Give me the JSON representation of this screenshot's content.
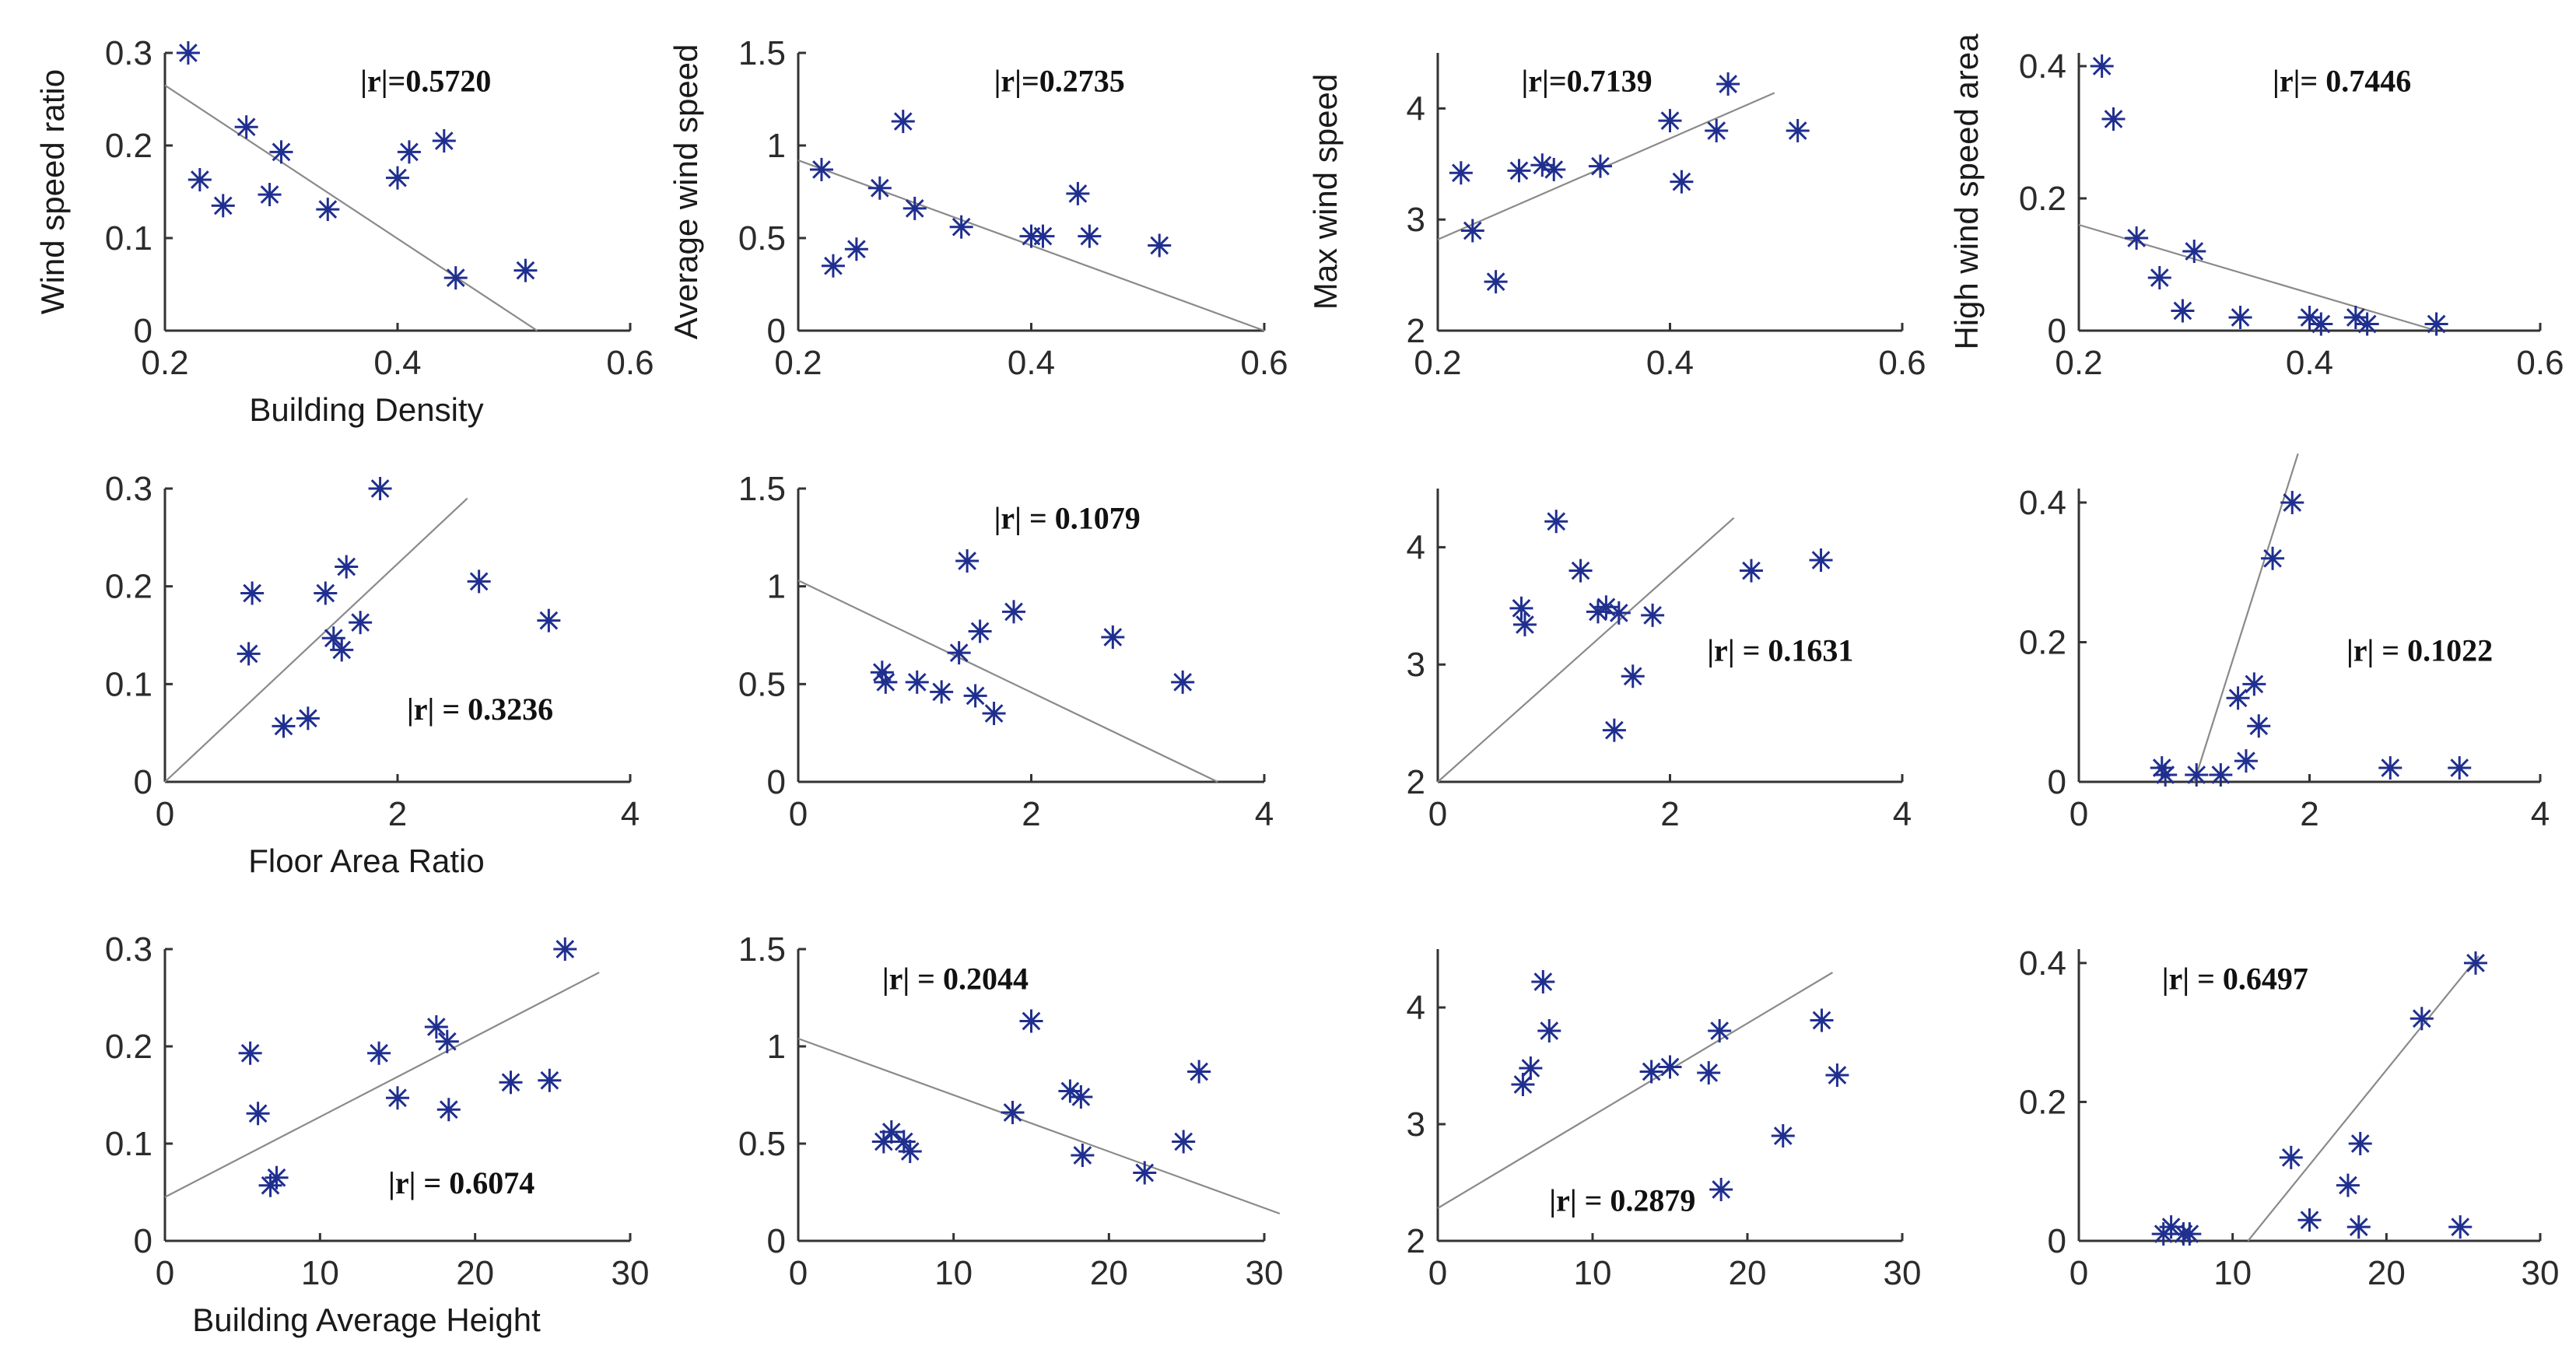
{
  "chart_data": [
    {
      "type": "scatter",
      "row": 0,
      "col": 0,
      "ylabel": "Wind speed ratio",
      "xlabel": "Building Density",
      "xlim": [
        0.2,
        0.6
      ],
      "ylim": [
        0,
        0.3
      ],
      "xticks": [
        0.2,
        0.4,
        0.6
      ],
      "yticks": [
        0,
        0.1,
        0.2,
        0.3
      ],
      "annotation": "|r|=0.5720",
      "annotation_pos": "top-center",
      "points": [
        [
          0.22,
          0.3
        ],
        [
          0.23,
          0.163
        ],
        [
          0.25,
          0.135
        ],
        [
          0.27,
          0.22
        ],
        [
          0.29,
          0.147
        ],
        [
          0.3,
          0.193
        ],
        [
          0.34,
          0.131
        ],
        [
          0.4,
          0.165
        ],
        [
          0.41,
          0.193
        ],
        [
          0.44,
          0.205
        ],
        [
          0.45,
          0.057
        ],
        [
          0.51,
          0.065
        ]
      ],
      "fit": [
        [
          0.2,
          0.265
        ],
        [
          0.52,
          0
        ]
      ]
    },
    {
      "type": "scatter",
      "row": 0,
      "col": 1,
      "ylabel": "Average wind speed",
      "xlabel": "",
      "xlim": [
        0.2,
        0.6
      ],
      "ylim": [
        0,
        1.5
      ],
      "xticks": [
        0.2,
        0.4,
        0.6
      ],
      "yticks": [
        0,
        0.5,
        1,
        1.5
      ],
      "annotation": "|r|=0.2735",
      "annotation_pos": "top-center",
      "points": [
        [
          0.22,
          0.87
        ],
        [
          0.23,
          0.35
        ],
        [
          0.25,
          0.44
        ],
        [
          0.27,
          0.77
        ],
        [
          0.29,
          1.13
        ],
        [
          0.3,
          0.66
        ],
        [
          0.34,
          0.56
        ],
        [
          0.4,
          0.51
        ],
        [
          0.41,
          0.51
        ],
        [
          0.44,
          0.74
        ],
        [
          0.45,
          0.51
        ],
        [
          0.51,
          0.46
        ]
      ],
      "fit": [
        [
          0.2,
          0.92
        ],
        [
          0.6,
          0
        ]
      ]
    },
    {
      "type": "scatter",
      "row": 0,
      "col": 2,
      "ylabel": "Max wind speed",
      "xlabel": "",
      "xlim": [
        0.2,
        0.6
      ],
      "ylim": [
        2,
        4.5
      ],
      "xticks": [
        0.2,
        0.4,
        0.6
      ],
      "yticks": [
        2,
        3,
        4
      ],
      "annotation": "|r|=0.7139",
      "annotation_pos": "top-left",
      "points": [
        [
          0.22,
          3.42
        ],
        [
          0.23,
          2.9
        ],
        [
          0.25,
          2.44
        ],
        [
          0.27,
          3.44
        ],
        [
          0.29,
          3.49
        ],
        [
          0.3,
          3.45
        ],
        [
          0.34,
          3.48
        ],
        [
          0.4,
          3.89
        ],
        [
          0.41,
          3.34
        ],
        [
          0.44,
          3.8
        ],
        [
          0.45,
          4.22
        ],
        [
          0.51,
          3.8
        ]
      ],
      "fit": [
        [
          0.2,
          2.82
        ],
        [
          0.49,
          4.14
        ]
      ]
    },
    {
      "type": "scatter",
      "row": 0,
      "col": 3,
      "ylabel": "High wind speed area",
      "xlabel": "",
      "xlim": [
        0.2,
        0.6
      ],
      "ylim": [
        0,
        0.42
      ],
      "xticks": [
        0.2,
        0.4,
        0.6
      ],
      "yticks": [
        0,
        0.2,
        0.4
      ],
      "annotation": "|r|= 0.7446",
      "annotation_pos": "top-center",
      "points": [
        [
          0.22,
          0.4
        ],
        [
          0.23,
          0.32
        ],
        [
          0.25,
          0.14
        ],
        [
          0.27,
          0.08
        ],
        [
          0.29,
          0.03
        ],
        [
          0.3,
          0.12
        ],
        [
          0.34,
          0.02
        ],
        [
          0.4,
          0.02
        ],
        [
          0.41,
          0.01
        ],
        [
          0.44,
          0.02
        ],
        [
          0.45,
          0.01
        ],
        [
          0.51,
          0.01
        ]
      ],
      "fit": [
        [
          0.2,
          0.16
        ],
        [
          0.51,
          0
        ]
      ]
    },
    {
      "type": "scatter",
      "row": 1,
      "col": 0,
      "ylabel": "",
      "xlabel": "Floor Area Ratio",
      "xlim": [
        0,
        4
      ],
      "ylim": [
        0,
        0.3
      ],
      "xticks": [
        0,
        2,
        4
      ],
      "yticks": [
        0,
        0.1,
        0.2,
        0.3
      ],
      "annotation": "|r| = 0.3236",
      "annotation_pos": "center",
      "points": [
        [
          0.72,
          0.131
        ],
        [
          0.75,
          0.193
        ],
        [
          1.02,
          0.057
        ],
        [
          1.23,
          0.065
        ],
        [
          1.38,
          0.193
        ],
        [
          1.45,
          0.147
        ],
        [
          1.52,
          0.135
        ],
        [
          1.56,
          0.22
        ],
        [
          1.68,
          0.163
        ],
        [
          1.85,
          0.3
        ],
        [
          2.7,
          0.205
        ],
        [
          3.3,
          0.165
        ]
      ],
      "fit": [
        [
          0,
          0
        ],
        [
          2.6,
          0.29
        ]
      ]
    },
    {
      "type": "scatter",
      "row": 1,
      "col": 1,
      "ylabel": "",
      "xlabel": "",
      "xlim": [
        0,
        4
      ],
      "ylim": [
        0,
        1.5
      ],
      "xticks": [
        0,
        2,
        4
      ],
      "yticks": [
        0,
        0.5,
        1,
        1.5
      ],
      "annotation": "|r| = 0.1079",
      "annotation_pos": "top-center",
      "points": [
        [
          0.72,
          0.56
        ],
        [
          0.75,
          0.51
        ],
        [
          1.02,
          0.51
        ],
        [
          1.23,
          0.46
        ],
        [
          1.38,
          0.66
        ],
        [
          1.45,
          1.13
        ],
        [
          1.52,
          0.44
        ],
        [
          1.56,
          0.77
        ],
        [
          1.68,
          0.35
        ],
        [
          1.85,
          0.87
        ],
        [
          2.7,
          0.74
        ],
        [
          3.3,
          0.51
        ]
      ],
      "fit": [
        [
          0,
          1.03
        ],
        [
          3.6,
          0
        ]
      ]
    },
    {
      "type": "scatter",
      "row": 1,
      "col": 2,
      "ylabel": "",
      "xlabel": "",
      "xlim": [
        0,
        4
      ],
      "ylim": [
        2,
        4.5
      ],
      "xticks": [
        0,
        2,
        4
      ],
      "yticks": [
        2,
        3,
        4
      ],
      "annotation": "|r| = 0.1631",
      "annotation_pos": "center-right",
      "points": [
        [
          0.72,
          3.48
        ],
        [
          0.75,
          3.34
        ],
        [
          1.02,
          4.22
        ],
        [
          1.23,
          3.8
        ],
        [
          1.38,
          3.45
        ],
        [
          1.45,
          3.49
        ],
        [
          1.52,
          2.44
        ],
        [
          1.56,
          3.44
        ],
        [
          1.68,
          2.9
        ],
        [
          1.85,
          3.42
        ],
        [
          2.7,
          3.8
        ],
        [
          3.3,
          3.89
        ]
      ],
      "fit": [
        [
          0,
          2.0
        ],
        [
          2.55,
          4.25
        ]
      ]
    },
    {
      "type": "scatter",
      "row": 1,
      "col": 3,
      "ylabel": "",
      "xlabel": "",
      "xlim": [
        0,
        4
      ],
      "ylim": [
        0,
        0.42
      ],
      "xticks": [
        0,
        2,
        4
      ],
      "yticks": [
        0,
        0.2,
        0.4
      ],
      "annotation": "|r| = 0.1022",
      "annotation_pos": "center-right",
      "points": [
        [
          0.72,
          0.02
        ],
        [
          0.75,
          0.01
        ],
        [
          1.02,
          0.01
        ],
        [
          1.23,
          0.01
        ],
        [
          1.38,
          0.12
        ],
        [
          1.45,
          0.03
        ],
        [
          1.52,
          0.14
        ],
        [
          1.56,
          0.08
        ],
        [
          1.68,
          0.32
        ],
        [
          1.85,
          0.4
        ],
        [
          2.7,
          0.02
        ],
        [
          3.3,
          0.02
        ]
      ],
      "fit": [
        [
          1.0,
          0
        ],
        [
          1.9,
          0.47
        ]
      ]
    },
    {
      "type": "scatter",
      "row": 2,
      "col": 0,
      "ylabel": "",
      "xlabel": "Building Average Height",
      "xlim": [
        0,
        30
      ],
      "ylim": [
        0,
        0.3
      ],
      "xticks": [
        0,
        10,
        20,
        30
      ],
      "yticks": [
        0,
        0.1,
        0.2,
        0.3
      ],
      "annotation": "|r| = 0.6074",
      "annotation_pos": "bottom-center",
      "points": [
        [
          5.5,
          0.193
        ],
        [
          6.0,
          0.131
        ],
        [
          6.8,
          0.057
        ],
        [
          7.2,
          0.065
        ],
        [
          13.8,
          0.193
        ],
        [
          15.0,
          0.147
        ],
        [
          17.5,
          0.22
        ],
        [
          18.2,
          0.205
        ],
        [
          18.3,
          0.135
        ],
        [
          22.3,
          0.163
        ],
        [
          24.8,
          0.165
        ],
        [
          25.8,
          0.3
        ]
      ],
      "fit": [
        [
          0,
          0.045
        ],
        [
          28,
          0.276
        ]
      ]
    },
    {
      "type": "scatter",
      "row": 2,
      "col": 1,
      "ylabel": "",
      "xlabel": "",
      "xlim": [
        0,
        30
      ],
      "ylim": [
        0,
        1.5
      ],
      "xticks": [
        0,
        10,
        20,
        30
      ],
      "yticks": [
        0,
        0.5,
        1,
        1.5
      ],
      "annotation": "|r| = 0.2044",
      "annotation_pos": "top-left",
      "points": [
        [
          5.5,
          0.51
        ],
        [
          6.0,
          0.56
        ],
        [
          6.8,
          0.51
        ],
        [
          7.2,
          0.46
        ],
        [
          13.8,
          0.66
        ],
        [
          15.0,
          1.13
        ],
        [
          17.5,
          0.77
        ],
        [
          18.2,
          0.74
        ],
        [
          18.3,
          0.44
        ],
        [
          22.3,
          0.35
        ],
        [
          24.8,
          0.51
        ],
        [
          25.8,
          0.87
        ]
      ],
      "fit": [
        [
          0,
          1.04
        ],
        [
          31,
          0.14
        ]
      ]
    },
    {
      "type": "scatter",
      "row": 2,
      "col": 2,
      "ylabel": "",
      "xlabel": "",
      "xlim": [
        0,
        30
      ],
      "ylim": [
        2,
        4.5
      ],
      "xticks": [
        0,
        10,
        20,
        30
      ],
      "yticks": [
        2,
        3,
        4
      ],
      "annotation": "|r| = 0.2879",
      "annotation_pos": "bottom-left",
      "points": [
        [
          5.5,
          3.34
        ],
        [
          6.0,
          3.48
        ],
        [
          6.8,
          4.22
        ],
        [
          7.2,
          3.8
        ],
        [
          13.8,
          3.45
        ],
        [
          15.0,
          3.49
        ],
        [
          17.5,
          3.44
        ],
        [
          18.2,
          3.8
        ],
        [
          18.3,
          2.44
        ],
        [
          22.3,
          2.9
        ],
        [
          24.8,
          3.89
        ],
        [
          25.8,
          3.42
        ]
      ],
      "fit": [
        [
          0,
          2.28
        ],
        [
          25.5,
          4.3
        ]
      ]
    },
    {
      "type": "scatter",
      "row": 2,
      "col": 3,
      "ylabel": "",
      "xlabel": "",
      "xlim": [
        0,
        30
      ],
      "ylim": [
        0,
        0.42
      ],
      "xticks": [
        0,
        10,
        20,
        30
      ],
      "yticks": [
        0,
        0.2,
        0.4
      ],
      "annotation": "|r| = 0.6497",
      "annotation_pos": "top-left",
      "points": [
        [
          5.5,
          0.01
        ],
        [
          6.0,
          0.02
        ],
        [
          6.8,
          0.01
        ],
        [
          7.2,
          0.01
        ],
        [
          13.8,
          0.12
        ],
        [
          15.0,
          0.03
        ],
        [
          17.5,
          0.08
        ],
        [
          18.2,
          0.02
        ],
        [
          18.3,
          0.14
        ],
        [
          22.3,
          0.32
        ],
        [
          24.8,
          0.02
        ],
        [
          25.8,
          0.4
        ]
      ],
      "fit": [
        [
          11,
          0
        ],
        [
          26,
          0.41
        ]
      ]
    }
  ]
}
